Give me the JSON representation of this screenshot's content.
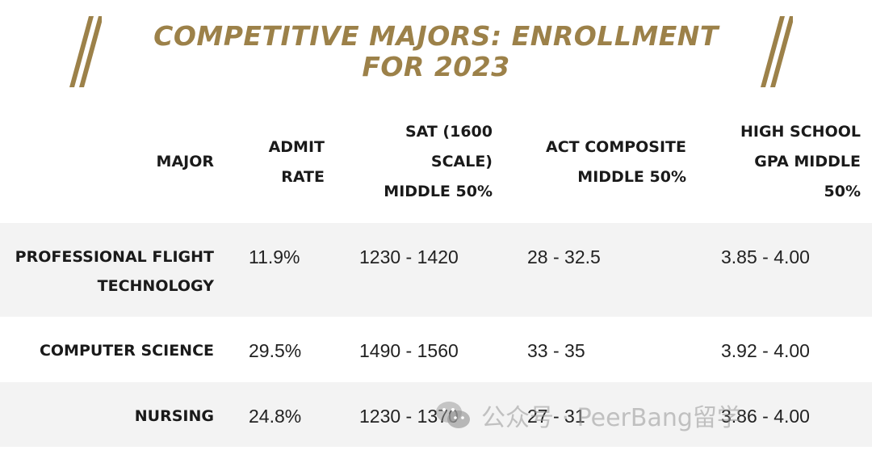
{
  "title": "COMPETITIVE MAJORS: ENROLLMENT FOR 2023",
  "colors": {
    "accent": "#9c8149",
    "stripe": "#f3f3f3",
    "text": "#1a1a1a"
  },
  "headers": {
    "major": "MAJOR",
    "admit_rate": "ADMIT RATE",
    "sat": "SAT (1600 SCALE) MIDDLE 50%",
    "act": "ACT COMPOSITE MIDDLE 50%",
    "gpa": "HIGH SCHOOL GPA MIDDLE 50%"
  },
  "rows": [
    {
      "major": "PROFESSIONAL FLIGHT TECHNOLOGY",
      "admit_rate": "11.9%",
      "sat": "1230 - 1420",
      "act": "28 - 32.5",
      "gpa": "3.85 - 4.00"
    },
    {
      "major": "COMPUTER SCIENCE",
      "admit_rate": "29.5%",
      "sat": "1490 - 1560",
      "act": "33 - 35",
      "gpa": "3.92 - 4.00"
    },
    {
      "major": "NURSING",
      "admit_rate": "24.8%",
      "sat": "1230 - 1370",
      "act": "27 - 31",
      "gpa": "3.86 - 4.00"
    }
  ],
  "watermark": "公众号 · PeerBang留学",
  "icons": {
    "decor": "double-slash-icon",
    "watermark": "wechat-icon"
  }
}
